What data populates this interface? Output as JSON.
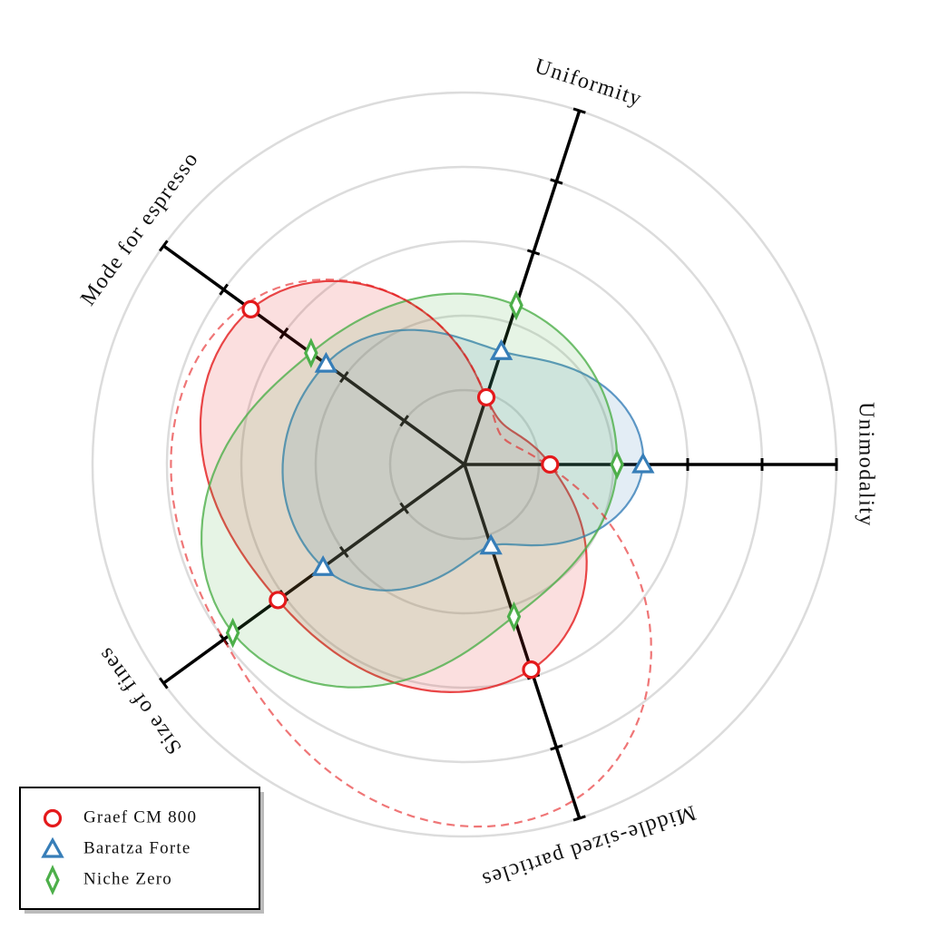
{
  "chart_data": {
    "type": "radar",
    "axes": [
      {
        "label": "Unimodality",
        "ticks": [
          0.6,
          0.8,
          1.0
        ]
      },
      {
        "label": "Uniformity",
        "ticks": [
          0.6,
          0.8,
          1.0
        ]
      },
      {
        "label": "Mode for espresso",
        "ticks": [
          0.2,
          0.4,
          0.6,
          0.8,
          1.0
        ]
      },
      {
        "label": "Size of fines",
        "ticks": [
          0.2,
          0.4,
          0.6,
          0.8,
          1.0
        ]
      },
      {
        "label": "Middle-sized particles",
        "ticks": [
          0.6,
          0.8,
          1.0
        ]
      }
    ],
    "rlim": [
      0,
      1
    ],
    "rgrids": [
      0.2,
      0.4,
      0.6,
      0.8,
      1.0
    ],
    "series": [
      {
        "name": "Graef CM 800",
        "color": "#e41a1c",
        "marker": "circle",
        "values": [
          0.23,
          0.19,
          0.71,
          0.62,
          0.58
        ]
      },
      {
        "name": "Baratza Forte",
        "color": "#377eb8",
        "marker": "triangle",
        "values": [
          0.48,
          0.32,
          0.46,
          0.47,
          0.23
        ]
      },
      {
        "name": "Niche Zero",
        "color": "#4daf4a",
        "marker": "diamond",
        "values": [
          0.41,
          0.45,
          0.51,
          0.77,
          0.43
        ]
      }
    ],
    "dashed_series": {
      "color": "#e41a1c",
      "values": [
        0.22,
        0.19,
        0.73,
        0.8,
        0.95
      ]
    },
    "legend": "lower left"
  }
}
